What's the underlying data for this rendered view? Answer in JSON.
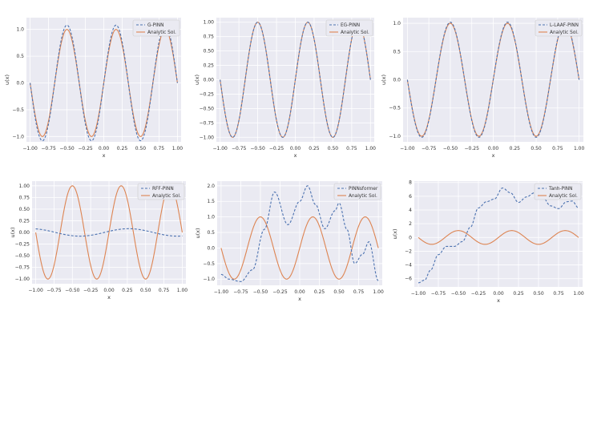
{
  "figure": {
    "background": "#ffffff",
    "plot_background": "#eaeaf2",
    "grid_color": "#ffffff"
  },
  "chart_data": [
    {
      "type": "line",
      "xlabel": "x",
      "ylabel": "u(x)",
      "xlim": [
        -1.05,
        1.05
      ],
      "ylim": [
        -1.1,
        1.22
      ],
      "xticks": [
        -1.0,
        -0.75,
        -0.5,
        -0.25,
        0.0,
        0.25,
        0.5,
        0.75,
        1.0
      ],
      "xtick_labels": [
        "−1.00",
        "−0.75",
        "−0.50",
        "−0.25",
        "0.00",
        "0.25",
        "0.50",
        "0.75",
        "1.00"
      ],
      "yticks": [
        -1.0,
        -0.5,
        0.0,
        0.5,
        1.0
      ],
      "ytick_labels": [
        "−1.0",
        "−0.5",
        "0.0",
        "0.5",
        "1.0"
      ],
      "legend": "top-right",
      "series": [
        {
          "name": "G-PINN",
          "style": "dashed",
          "color": "#4c72b0",
          "amp": 1.08,
          "offset": 0.0,
          "slope": 0.0,
          "extra": 0.0,
          "approx_of": "sin(3pi x)"
        },
        {
          "name": "Analytic Sol.",
          "style": "solid",
          "color": "#dd8452",
          "amp": 1.0,
          "approx_of": "sin(3pi x)"
        }
      ]
    },
    {
      "type": "line",
      "xlabel": "x",
      "ylabel": "u(x)",
      "xlim": [
        -1.05,
        1.05
      ],
      "ylim": [
        -1.08,
        1.08
      ],
      "xticks": [
        -1.0,
        -0.75,
        -0.5,
        -0.25,
        0.0,
        0.25,
        0.5,
        0.75,
        1.0
      ],
      "xtick_labels": [
        "−1.00",
        "−0.75",
        "−0.50",
        "−0.25",
        "0.00",
        "0.25",
        "0.50",
        "0.75",
        "1.00"
      ],
      "yticks": [
        -1.0,
        -0.75,
        -0.5,
        -0.25,
        0.0,
        0.25,
        0.5,
        0.75,
        1.0
      ],
      "ytick_labels": [
        "−1.00",
        "−0.75",
        "−0.50",
        "−0.25",
        "0.00",
        "0.25",
        "0.50",
        "0.75",
        "1.00"
      ],
      "legend": "top-right",
      "series": [
        {
          "name": "EG-PINN",
          "style": "dashed",
          "color": "#4c72b0",
          "amp": 1.0,
          "offset": 0.0,
          "slope": 0.0,
          "extra": 0.0
        },
        {
          "name": "Analytic Sol.",
          "style": "solid",
          "color": "#dd8452",
          "amp": 1.0
        }
      ]
    },
    {
      "type": "line",
      "xlabel": "x",
      "ylabel": "u(x)",
      "xlim": [
        -1.05,
        1.05
      ],
      "ylim": [
        -1.1,
        1.1
      ],
      "xticks": [
        -1.0,
        -0.75,
        -0.5,
        -0.25,
        0.0,
        0.25,
        0.5,
        0.75,
        1.0
      ],
      "xtick_labels": [
        "−1.00",
        "−0.75",
        "−0.50",
        "−0.25",
        "0.00",
        "0.25",
        "0.50",
        "0.75",
        "1.00"
      ],
      "yticks": [
        -1.0,
        -0.5,
        0.0,
        0.5,
        1.0
      ],
      "ytick_labels": [
        "−1.0",
        "−0.5",
        "0.0",
        "0.5",
        "1.0"
      ],
      "legend": "top-right",
      "series": [
        {
          "name": "L-LAAF-PINN",
          "style": "dashed",
          "color": "#4c72b0",
          "amp": 1.02,
          "offset": 0.0,
          "slope": 0.0,
          "extra": 0.0
        },
        {
          "name": "Analytic Sol.",
          "style": "solid",
          "color": "#dd8452",
          "amp": 1.0
        }
      ]
    },
    {
      "type": "line",
      "xlabel": "x",
      "ylabel": "u(x)",
      "xlim": [
        -1.05,
        1.05
      ],
      "ylim": [
        -1.1,
        1.1
      ],
      "xticks": [
        -1.0,
        -0.75,
        -0.5,
        -0.25,
        0.0,
        0.25,
        0.5,
        0.75,
        1.0
      ],
      "xtick_labels": [
        "−1.00",
        "−0.75",
        "−0.50",
        "−0.25",
        "0.00",
        "0.25",
        "0.50",
        "0.75",
        "1.00"
      ],
      "yticks": [
        -1.0,
        -0.75,
        -0.5,
        -0.25,
        0.0,
        0.25,
        0.5,
        0.75,
        1.0
      ],
      "ytick_labels": [
        "−1.00",
        "−0.75",
        "−0.50",
        "−0.25",
        "0.00",
        "0.25",
        "0.50",
        "0.75",
        "1.00"
      ],
      "legend": "top-right",
      "series": [
        {
          "name": "RFF-PINN",
          "style": "dashed",
          "color": "#4c72b0",
          "amp": 0.0,
          "offset": 0.0,
          "slope": 0.0,
          "extra": 0.0,
          "wave_amp": 0.08,
          "wave_freq": 1.5
        },
        {
          "name": "Analytic Sol.",
          "style": "solid",
          "color": "#dd8452",
          "amp": 1.0
        }
      ]
    },
    {
      "type": "line",
      "xlabel": "x",
      "ylabel": "u(x)",
      "xlim": [
        -1.05,
        1.05
      ],
      "ylim": [
        -1.2,
        2.15
      ],
      "xticks": [
        -1.0,
        -0.75,
        -0.5,
        -0.25,
        0.0,
        0.25,
        0.5,
        0.75,
        1.0
      ],
      "xtick_labels": [
        "−1.00",
        "−0.75",
        "−0.50",
        "−0.25",
        "0.00",
        "0.25",
        "0.50",
        "0.75",
        "1.00"
      ],
      "yticks": [
        -1.0,
        -0.5,
        0.0,
        0.5,
        1.0,
        1.5,
        2.0
      ],
      "ytick_labels": [
        "−1.0",
        "−0.5",
        "0.0",
        "0.5",
        "1.0",
        "1.5",
        "2.0"
      ],
      "legend": "top-right",
      "series": [
        {
          "name": "PINNsformer",
          "style": "dashed",
          "color": "#4c72b0",
          "points": [
            [
              -1.0,
              -0.85
            ],
            [
              -0.9,
              -1.0
            ],
            [
              -0.75,
              -1.08
            ],
            [
              -0.6,
              -0.7
            ],
            [
              -0.45,
              0.6
            ],
            [
              -0.32,
              1.8
            ],
            [
              -0.15,
              0.75
            ],
            [
              0.0,
              1.5
            ],
            [
              0.1,
              2.0
            ],
            [
              0.2,
              1.4
            ],
            [
              0.32,
              0.62
            ],
            [
              0.45,
              1.2
            ],
            [
              0.5,
              1.45
            ],
            [
              0.6,
              0.6
            ],
            [
              0.7,
              -0.5
            ],
            [
              0.8,
              -0.2
            ],
            [
              0.88,
              0.2
            ],
            [
              1.0,
              -1.05
            ]
          ]
        },
        {
          "name": "Analytic Sol.",
          "style": "solid",
          "color": "#dd8452",
          "amp": 1.0
        }
      ]
    },
    {
      "type": "line",
      "xlabel": "x",
      "ylabel": "u(x)",
      "xlim": [
        -1.05,
        1.05
      ],
      "ylim": [
        -7.2,
        8.2
      ],
      "xticks": [
        -1.0,
        -0.75,
        -0.5,
        -0.25,
        0.0,
        0.25,
        0.5,
        0.75,
        1.0
      ],
      "xtick_labels": [
        "−1.00",
        "−0.75",
        "−0.50",
        "−0.25",
        "0.00",
        "0.25",
        "0.50",
        "0.75",
        "1.00"
      ],
      "yticks": [
        -6,
        -4,
        -2,
        0,
        2,
        4,
        6,
        8
      ],
      "ytick_labels": [
        "−6",
        "−4",
        "−2",
        "0",
        "2",
        "4",
        "6",
        "8"
      ],
      "legend": "top-right",
      "series": [
        {
          "name": "Tanh-PINN",
          "style": "dashed",
          "color": "#4c72b0",
          "points": [
            [
              -1.0,
              -6.6
            ],
            [
              -0.92,
              -6.2
            ],
            [
              -0.85,
              -4.8
            ],
            [
              -0.75,
              -2.5
            ],
            [
              -0.65,
              -1.3
            ],
            [
              -0.55,
              -1.3
            ],
            [
              -0.45,
              -0.6
            ],
            [
              -0.35,
              1.5
            ],
            [
              -0.25,
              4.3
            ],
            [
              -0.15,
              5.2
            ],
            [
              -0.05,
              5.6
            ],
            [
              0.05,
              7.2
            ],
            [
              0.15,
              6.5
            ],
            [
              0.25,
              5.1
            ],
            [
              0.35,
              5.9
            ],
            [
              0.45,
              6.5
            ],
            [
              0.55,
              5.9
            ],
            [
              0.65,
              4.6
            ],
            [
              0.75,
              4.2
            ],
            [
              0.85,
              5.2
            ],
            [
              0.92,
              5.3
            ],
            [
              1.0,
              4.3
            ]
          ]
        },
        {
          "name": "Analytic Sol.",
          "style": "solid",
          "color": "#dd8452",
          "amp": 1.0
        }
      ]
    }
  ]
}
